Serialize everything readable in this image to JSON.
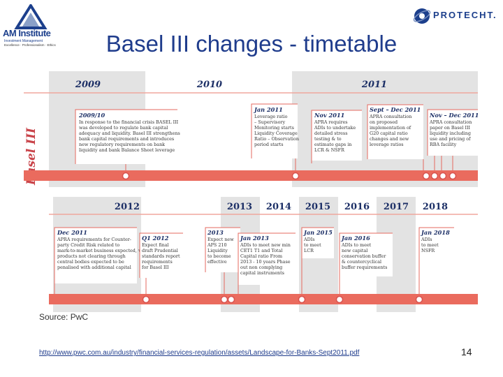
{
  "header": {
    "title": "Basel III changes - timetable",
    "left_logo": {
      "brand": "AM Institute",
      "sub1": "Investment Management",
      "sub2": "Excellence · Professionalism · Ethics"
    },
    "right_logo": {
      "brand": "PROTECHT."
    }
  },
  "diagram": {
    "side_label": "Basel III",
    "colors": {
      "band": "#e3e3e3",
      "timeline": "#ea6b5e",
      "rule": "#f0a79d",
      "box_border": "#e46a5f",
      "heading": "#1c2f66"
    },
    "top_years": [
      "2009",
      "2010",
      "2011"
    ],
    "bottom_years": [
      "2012",
      "2013",
      "2014",
      "2015",
      "2016",
      "2017",
      "2018"
    ],
    "top_boxes": [
      {
        "heading": "2009/10",
        "lines": [
          "In response to the financial crisis BASEL III",
          "was developed to regulate bank capital",
          "adequacy and liquidity. Basel III strengthens",
          "bank capital requirements and introduces",
          "new regulatory requirements on bank",
          "liquidity and bank Balance Sheet leverage"
        ]
      },
      {
        "heading": "Jan 2011",
        "lines": [
          "Leverage ratio",
          "– Supervisory",
          "Monitoring starts",
          "Liquidity Coverage",
          "Ratio – Observation",
          "period starts"
        ]
      },
      {
        "heading": "Nov 2011",
        "lines": [
          "APRA requires",
          "ADIs to undertake",
          "detailed stress",
          "testing & to",
          "estimate gaps in",
          "LCR & NSFR"
        ]
      },
      {
        "heading": "Sept – Dec 2011",
        "lines": [
          "APRA consultation",
          "on proposed",
          "implementation of",
          "G20 capital ratio",
          "changes and new",
          "leverage ratios"
        ]
      },
      {
        "heading": "Nov – Dec 2011",
        "lines": [
          "APRA consultation",
          "paper on Basel III",
          "liquidity including",
          "use and pricing of",
          "RBA facility"
        ]
      }
    ],
    "bottom_boxes": [
      {
        "heading": "Dec 2011",
        "lines": [
          "APRA requirements for Counter-",
          "party Credit Risk related to",
          "mark-to-market business expected, with",
          "products not clearing through",
          "central bodies expected to be",
          "penalised with additional capital"
        ]
      },
      {
        "heading": "Q1 2012",
        "lines": [
          "Expect final",
          "draft Prudential",
          "standards report",
          "requirements",
          "for Basel III"
        ]
      },
      {
        "heading": "2013",
        "lines": [
          "Expect new",
          "APS 210",
          "Liquidity",
          "to become",
          "effective"
        ]
      },
      {
        "heading": "Jan 2013",
        "lines": [
          "ADIs to meet new min",
          "CET1 T1 and Total",
          "Capital ratio From",
          "2013 - 10 years Phase",
          "out non complying",
          "capital instruments"
        ]
      },
      {
        "heading": "Jan 2015",
        "lines": [
          "ADIs",
          "to meet",
          "LCR"
        ]
      },
      {
        "heading": "Jan 2016",
        "lines": [
          "ADIs to meet",
          "new capital",
          "conservation buffer",
          "& countercyclical",
          "buffer requirements"
        ]
      },
      {
        "heading": "Jan 2018",
        "lines": [
          "ADIs",
          "to meet",
          "NSFR"
        ]
      }
    ]
  },
  "footer": {
    "source": "Source: PwC",
    "url": "http://www.pwc.com.au/industry/financial-services-regulation/assets/Landscape-for-Banks-Sept2011.pdf",
    "page_number": "14"
  }
}
